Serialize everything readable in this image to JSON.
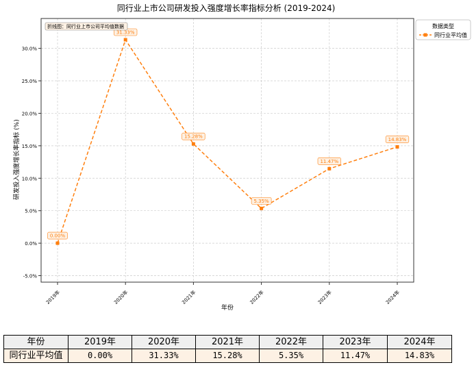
{
  "chart_data": {
    "type": "line",
    "title": "同行业上市公司研发投入强度增长率指标分析 (2019-2024)",
    "xlabel": "年份",
    "ylabel": "研发投入强度增长率指标 (%)",
    "categories": [
      "2019年",
      "2020年",
      "2021年",
      "2022年",
      "2023年",
      "2024年"
    ],
    "series": [
      {
        "name": "同行业平均值",
        "values": [
          0.0,
          31.33,
          15.28,
          5.35,
          11.47,
          14.83
        ],
        "data_labels": [
          "0.00%",
          "31.33%",
          "15.28%",
          "5.35%",
          "11.47%",
          "14.83%"
        ],
        "color": "#ff7f0e",
        "line_style": "dashed",
        "marker": "square"
      }
    ],
    "ylim": [
      -6.0,
      34.6
    ],
    "yticks": [
      -5.0,
      0.0,
      5.0,
      10.0,
      15.0,
      20.0,
      25.0,
      30.0
    ],
    "ytick_labels": [
      "-5.0%",
      "0.0%",
      "5.0%",
      "10.0%",
      "15.0%",
      "20.0%",
      "25.0%",
      "30.0%"
    ],
    "grid": true,
    "legend": {
      "title": "数据类型",
      "placement": "outside-right-top"
    },
    "annotation": "折线图：同行业上市公司平均值数据"
  },
  "table": {
    "header": [
      "年份",
      "2019年",
      "2020年",
      "2021年",
      "2022年",
      "2023年",
      "2024年"
    ],
    "rows": [
      [
        "同行业平均值",
        "0.00%",
        "31.33%",
        "15.28%",
        "5.35%",
        "11.47%",
        "14.83%"
      ]
    ]
  }
}
